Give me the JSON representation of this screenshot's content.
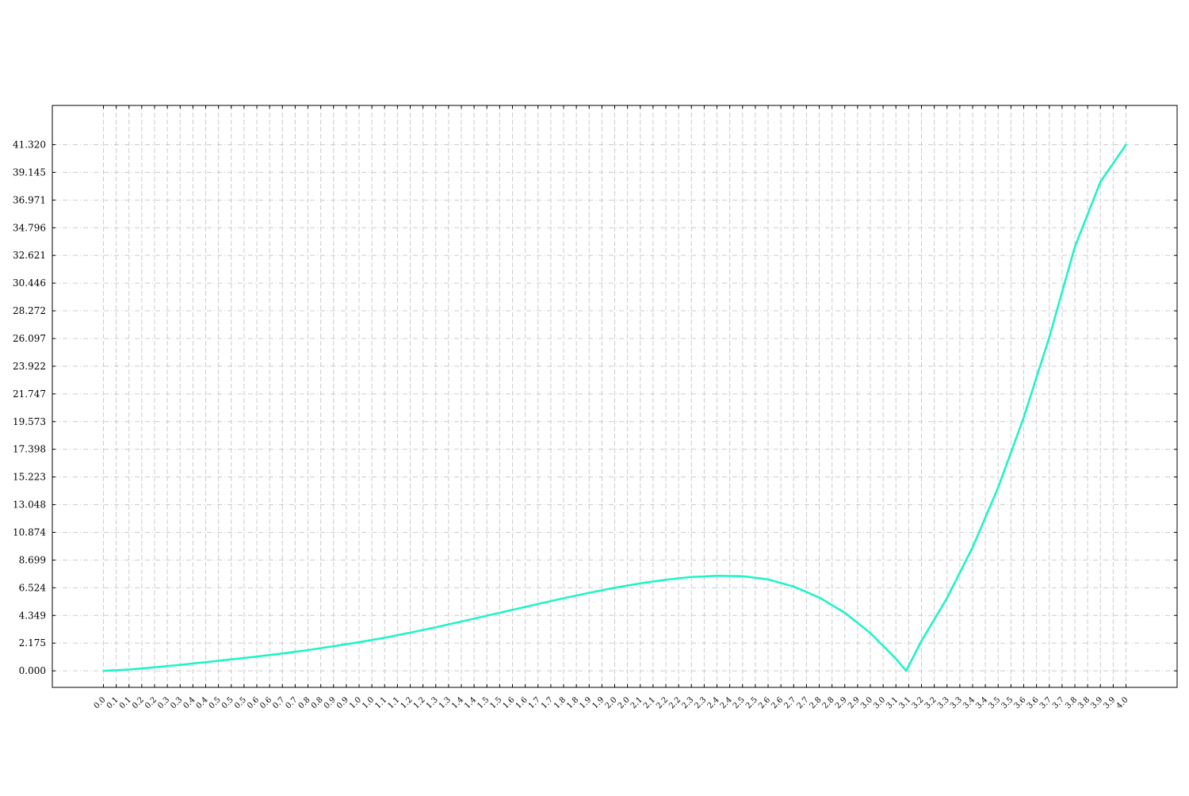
{
  "chart_data": {
    "type": "line",
    "title": "",
    "xlabel": "",
    "ylabel": "",
    "grid": true,
    "legend": "none",
    "colors": {
      "line": "#19f5c3",
      "grid": "#cccccc",
      "axes": "#000000",
      "background": "#ffffff"
    },
    "xlim": [
      -0.2,
      4.2
    ],
    "ylim": [
      -1.3,
      44.4
    ],
    "x_ticks": [
      0.0,
      0.05,
      0.1,
      0.15,
      0.2,
      0.25,
      0.3,
      0.35,
      0.4,
      0.45,
      0.5,
      0.55,
      0.6,
      0.65,
      0.7,
      0.75,
      0.8,
      0.85,
      0.9,
      0.95,
      1.0,
      1.05,
      1.1,
      1.15,
      1.2,
      1.25,
      1.3,
      1.35,
      1.4,
      1.45,
      1.5,
      1.55,
      1.6,
      1.65,
      1.7,
      1.75,
      1.8,
      1.85,
      1.9,
      1.95,
      2.0,
      2.05,
      2.1,
      2.15,
      2.2,
      2.25,
      2.3,
      2.35,
      2.4,
      2.45,
      2.5,
      2.55,
      2.6,
      2.65,
      2.7,
      2.75,
      2.8,
      2.85,
      2.9,
      2.95,
      3.0,
      3.05,
      3.1,
      3.15,
      3.2,
      3.25,
      3.3,
      3.35,
      3.4,
      3.45,
      3.5,
      3.55,
      3.6,
      3.65,
      3.7,
      3.75,
      3.8,
      3.85,
      3.9,
      3.95,
      4.0
    ],
    "x_tick_labels": [
      "0.0",
      "0.1",
      "0.1",
      "0.2",
      "0.2",
      "0.3",
      "0.3",
      "0.4",
      "0.4",
      "0.5",
      "0.5",
      "0.5",
      "0.6",
      "0.6",
      "0.7",
      "0.7",
      "0.8",
      "0.8",
      "0.9",
      "0.9",
      "1.0",
      "1.0",
      "1.1",
      "1.1",
      "1.2",
      "1.2",
      "1.3",
      "1.3",
      "1.4",
      "1.4",
      "1.5",
      "1.5",
      "1.6",
      "1.6",
      "1.7",
      "1.7",
      "1.8",
      "1.8",
      "1.9",
      "1.9",
      "2.0",
      "2.0",
      "2.1",
      "2.1",
      "2.2",
      "2.2",
      "2.3",
      "2.3",
      "2.4",
      "2.4",
      "2.5",
      "2.5",
      "2.6",
      "2.6",
      "2.7",
      "2.7",
      "2.8",
      "2.8",
      "2.9",
      "2.9",
      "3.0",
      "3.0",
      "3.1",
      "3.1",
      "3.2",
      "3.2",
      "3.3",
      "3.3",
      "3.4",
      "3.4",
      "3.5",
      "3.5",
      "3.6",
      "3.6",
      "3.7",
      "3.7",
      "3.8",
      "3.8",
      "3.9",
      "3.9",
      "4.0"
    ],
    "y_ticks": [
      0.0,
      2.175,
      4.349,
      6.524,
      8.699,
      10.874,
      13.048,
      15.223,
      17.398,
      19.573,
      21.747,
      23.922,
      26.097,
      28.272,
      30.446,
      32.621,
      34.796,
      36.971,
      39.145,
      41.32
    ],
    "y_tick_labels": [
      "0.000",
      "2.175",
      "4.349",
      "6.524",
      "8.699",
      "10.874",
      "13.048",
      "15.223",
      "17.398",
      "19.573",
      "21.747",
      "23.922",
      "26.097",
      "28.272",
      "30.446",
      "32.621",
      "34.796",
      "36.971",
      "39.145",
      "41.320"
    ],
    "series": [
      {
        "x": [
          0.0,
          0.1,
          0.2,
          0.3,
          0.4,
          0.5,
          0.6,
          0.7,
          0.8,
          0.9,
          1.0,
          1.1,
          1.2,
          1.3,
          1.4,
          1.5,
          1.6,
          1.7,
          1.8,
          1.9,
          2.0,
          2.1,
          2.2,
          2.3,
          2.4,
          2.5,
          2.6,
          2.7,
          2.8,
          2.9,
          3.0,
          3.1,
          3.14,
          3.2,
          3.3,
          3.4,
          3.5,
          3.6,
          3.7,
          3.8,
          3.9,
          4.0
        ],
        "y": [
          0.0,
          0.1,
          0.28,
          0.47,
          0.68,
          0.9,
          1.12,
          1.36,
          1.63,
          1.93,
          2.25,
          2.6,
          3.0,
          3.42,
          3.87,
          4.33,
          4.79,
          5.25,
          5.7,
          6.13,
          6.52,
          6.87,
          7.15,
          7.37,
          7.46,
          7.43,
          7.18,
          6.62,
          5.76,
          4.56,
          2.97,
          0.95,
          0.0,
          2.35,
          5.72,
          9.7,
          14.4,
          19.9,
          26.2,
          33.3,
          38.4,
          41.32
        ]
      }
    ]
  }
}
